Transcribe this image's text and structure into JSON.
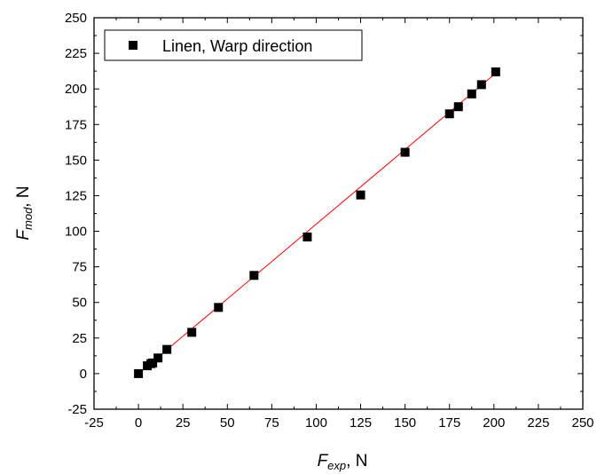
{
  "chart_data": {
    "type": "scatter",
    "title": "",
    "xlabel": {
      "main": "F",
      "sub": "exp",
      "unit": ", N"
    },
    "ylabel": {
      "main": "F",
      "sub": "mod",
      "unit": ", N"
    },
    "xlim": [
      -25,
      250
    ],
    "ylim": [
      -25,
      250
    ],
    "x_ticks": [
      -25,
      0,
      25,
      50,
      75,
      100,
      125,
      150,
      175,
      200,
      225,
      250
    ],
    "y_ticks": [
      -25,
      0,
      25,
      50,
      75,
      100,
      125,
      150,
      175,
      200,
      225,
      250
    ],
    "grid": false,
    "legend": {
      "position": "top-left",
      "entries": [
        "Linen, Warp direction"
      ]
    },
    "series": [
      {
        "name": "Linen, Warp direction",
        "marker": "square",
        "color": "#000000",
        "points": [
          [
            0,
            0
          ],
          [
            5,
            5.5
          ],
          [
            7,
            7
          ],
          [
            8,
            7.5
          ],
          [
            11,
            11
          ],
          [
            16,
            17
          ],
          [
            30,
            29
          ],
          [
            45,
            46.5
          ],
          [
            65,
            69
          ],
          [
            95,
            96
          ],
          [
            125,
            125.5
          ],
          [
            150,
            155.5
          ],
          [
            175,
            182.5
          ],
          [
            180,
            187.5
          ],
          [
            187.5,
            196.5
          ],
          [
            193,
            203
          ],
          [
            201,
            212
          ]
        ]
      }
    ],
    "fit_line": {
      "color": "#ff0000",
      "x": [
        0,
        201
      ],
      "y": [
        0,
        211
      ]
    }
  }
}
